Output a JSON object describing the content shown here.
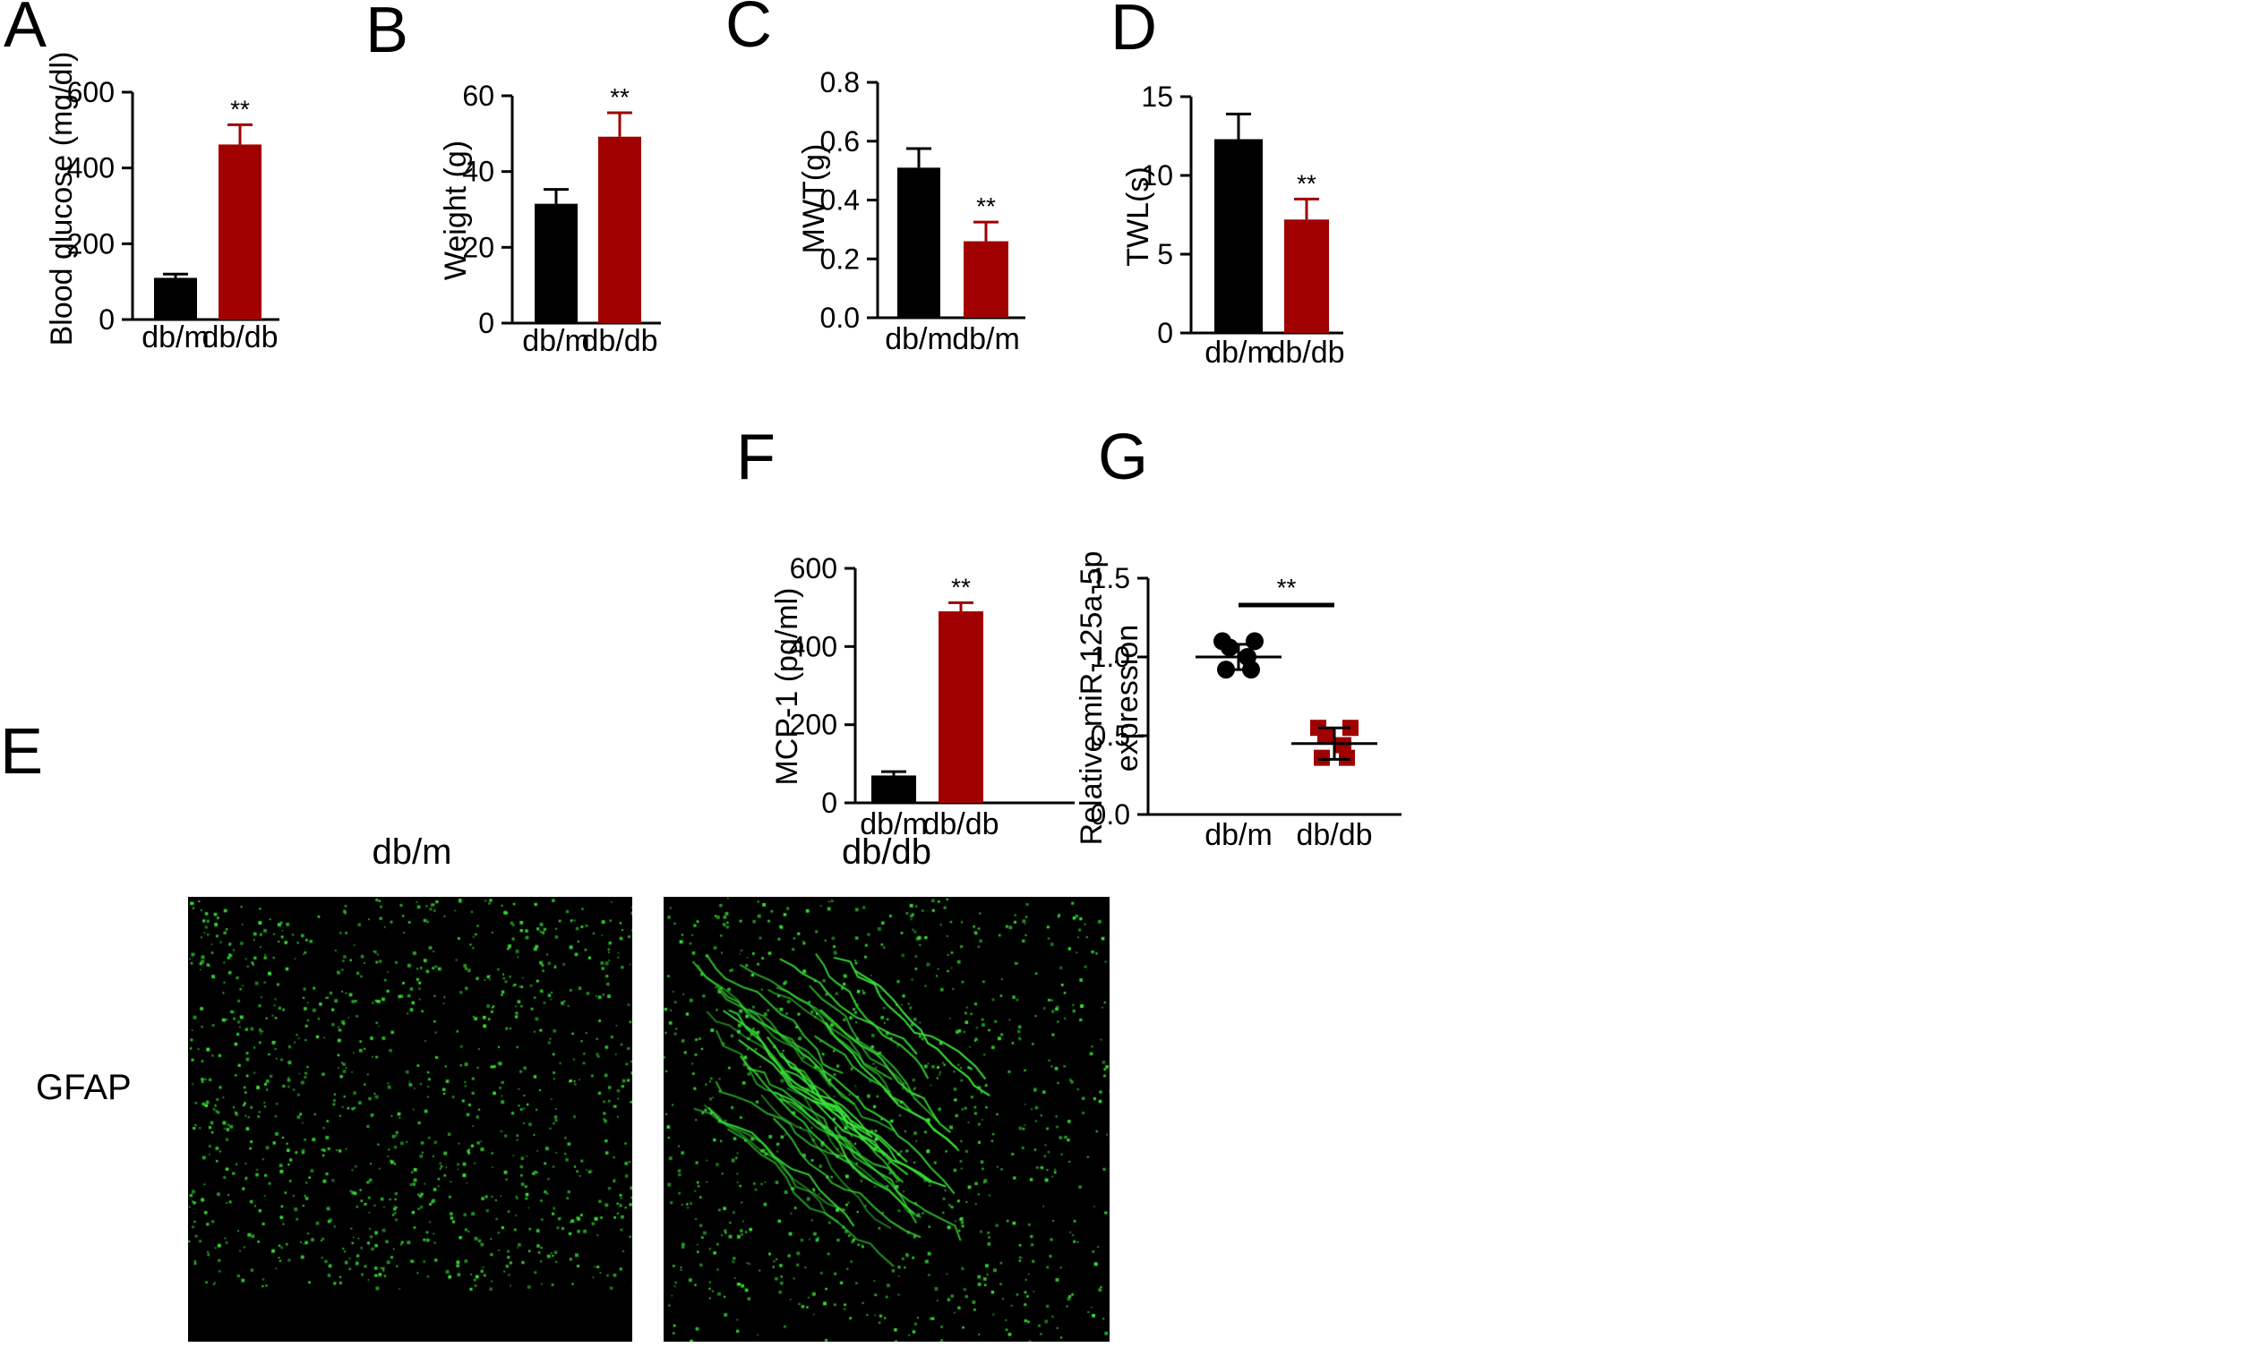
{
  "colors": {
    "control": "#000000",
    "disease": "#a00000",
    "stain": "#39e639"
  },
  "chart_data": [
    {
      "panel": "A",
      "type": "bar",
      "categories": [
        "db/m",
        "db/db"
      ],
      "values": [
        110,
        462
      ],
      "errors": [
        10,
        52
      ],
      "ylabel": "Blood glucose (mg/dl)",
      "ylim": [
        0,
        600
      ],
      "yticks": [
        "0",
        "200",
        "400",
        "600"
      ],
      "significance": "**"
    },
    {
      "panel": "B",
      "type": "bar",
      "categories": [
        "db/m",
        "db/db"
      ],
      "values": [
        31.5,
        49.2
      ],
      "errors": [
        3.8,
        6.3
      ],
      "ylabel": "Weight (g)",
      "ylim": [
        0,
        60
      ],
      "yticks": [
        "0",
        "20",
        "40",
        "60"
      ],
      "significance": "**"
    },
    {
      "panel": "C",
      "type": "bar",
      "categories": [
        "db/m",
        "db/m"
      ],
      "values": [
        0.51,
        0.26
      ],
      "errors": [
        0.065,
        0.065
      ],
      "ylabel": "MWT(g)",
      "ylim": [
        0,
        0.8
      ],
      "yticks": [
        "0.0",
        "0.2",
        "0.4",
        "0.6",
        "0.8"
      ],
      "significance": "**"
    },
    {
      "panel": "D",
      "type": "bar",
      "categories": [
        "db/m",
        "db/db"
      ],
      "values": [
        12.3,
        7.2
      ],
      "errors": [
        1.6,
        1.3
      ],
      "ylabel": "TWL(s)",
      "ylim": [
        0,
        15
      ],
      "yticks": [
        "0",
        "5",
        "10",
        "15"
      ],
      "significance": "**"
    },
    {
      "panel": "F",
      "type": "bar",
      "categories": [
        "db/m",
        "db/db"
      ],
      "values": [
        70,
        490
      ],
      "errors": [
        10,
        22
      ],
      "ylabel": "MCP-1 (pg/ml)",
      "ylim": [
        0,
        600
      ],
      "yticks": [
        "0",
        "200",
        "400",
        "600"
      ],
      "significance": "**"
    },
    {
      "panel": "G",
      "type": "scatter",
      "categories": [
        "db/m",
        "db/db"
      ],
      "series": [
        {
          "values": [
            1.1,
            1.1,
            1.06,
            1.0,
            0.92,
            0.92
          ],
          "mean": 1.0,
          "sd": 0.08
        },
        {
          "values": [
            0.55,
            0.55,
            0.5,
            0.44,
            0.36,
            0.36
          ],
          "mean": 0.45,
          "sd": 0.1
        }
      ],
      "ylabel_lines": [
        "Relative miR-125a-5p",
        "expression"
      ],
      "ylim": [
        0,
        1.5
      ],
      "yticks": [
        "0.0",
        "0.5",
        "1.0",
        "1.5"
      ],
      "significance": "**"
    }
  ],
  "micrograph": {
    "panel": "E",
    "row_label": "GFAP",
    "columns": [
      "db/m",
      "db/db"
    ]
  }
}
